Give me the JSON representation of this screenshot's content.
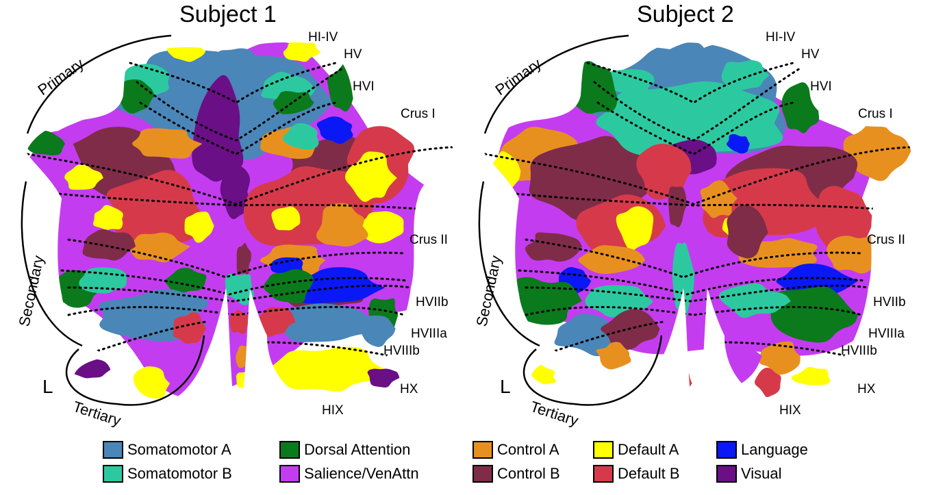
{
  "panels": [
    {
      "title": "Subject 1",
      "hemisphere_label": "L",
      "divisions": [
        "Primary",
        "Secondary",
        "Tertiary"
      ],
      "lobules": [
        "HI-IV",
        "HV",
        "HVI",
        "Crus I",
        "Crus II",
        "HVIIb",
        "HVIIIa",
        "HVIIIb",
        "HX",
        "HIX"
      ]
    },
    {
      "title": "Subject 2",
      "hemisphere_label": "L",
      "divisions": [
        "Primary",
        "Secondary",
        "Tertiary"
      ],
      "lobules": [
        "HI-IV",
        "HV",
        "HVI",
        "Crus I",
        "Crus II",
        "HVIIb",
        "HVIIIa",
        "HVIIIb",
        "HX",
        "HIX"
      ]
    }
  ],
  "legend": [
    {
      "label": "Somatomotor A",
      "color": "#4a86b8"
    },
    {
      "label": "Somatomotor B",
      "color": "#2cc9a0"
    },
    {
      "label": "Dorsal Attention",
      "color": "#0b7a1c"
    },
    {
      "label": "Salience/VenAttn",
      "color": "#c43cf0"
    },
    {
      "label": "Control A",
      "color": "#e8901f"
    },
    {
      "label": "Control B",
      "color": "#7f2c48"
    },
    {
      "label": "Default A",
      "color": "#ffff00"
    },
    {
      "label": "Default B",
      "color": "#d63a4a"
    },
    {
      "label": "Language",
      "color": "#0a18f5"
    },
    {
      "label": "Visual",
      "color": "#6a0f86"
    }
  ]
}
